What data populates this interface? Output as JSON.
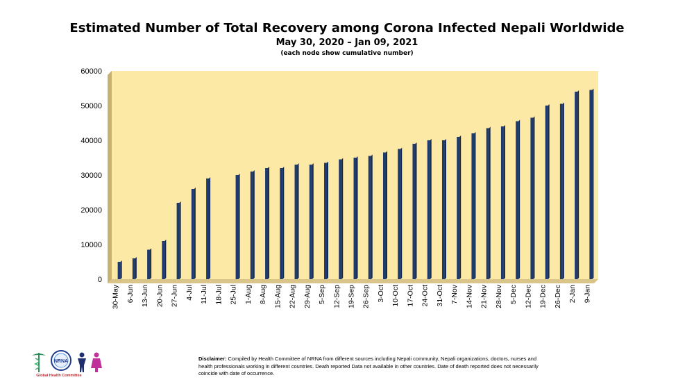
{
  "chart_data": {
    "type": "bar",
    "title": "Estimated Number of Total Recovery among Corona Infected Nepali Worldwide",
    "subtitle": "May 30, 2020 – Jan 09, 2021",
    "note": "(each node show cumulative number)",
    "ylim": [
      0,
      60000
    ],
    "yticks": [
      0,
      10000,
      20000,
      30000,
      40000,
      50000,
      60000
    ],
    "grid": false,
    "categories": [
      "30-May",
      "6-Jun",
      "13-Jun",
      "20-Jun",
      "27-Jun",
      "4-Jul",
      "11-Jul",
      "18-Jul",
      "25-Jul",
      "1-Aug",
      "8-Aug",
      "15-Aug",
      "22-Aug",
      "29-Aug",
      "5-Sep",
      "12-Sep",
      "19-Sep",
      "26-Sep",
      "3-Oct",
      "10-Oct",
      "17-Oct",
      "24-Oct",
      "31-Oct",
      "7-Nov",
      "14-Nov",
      "21-Nov",
      "28-Nov",
      "5-Dec",
      "12-Dec",
      "19-Dec",
      "26-Dec",
      "2-Jan",
      "9-Jan"
    ],
    "values": [
      5000,
      6000,
      8500,
      11000,
      22000,
      26000,
      29000,
      null,
      30000,
      31000,
      32000,
      32000,
      33000,
      33000,
      33500,
      34500,
      35000,
      35500,
      36500,
      37500,
      39000,
      40000,
      40000,
      41000,
      42000,
      43500,
      44000,
      45500,
      46500,
      50000,
      50500,
      54000,
      54500
    ],
    "colors": {
      "bar": "#1f3b6e",
      "plot_bg": "#fde9a6",
      "wall_side": "#c8b071",
      "floor": "#d9c489"
    }
  },
  "disclaimer": {
    "label": "Disclaimer:",
    "text": " Compiled by Health Committee of NRNA from different sources including Nepali community, Nepali organizations, doctors, nurses and health professionals working in different countries. Death reported Data not available in other countries. Date of death reported does not necessarily coincide with date of occurrence."
  },
  "logo": {
    "badge_text": "NRNA",
    "caption": "Global Health Committee"
  }
}
